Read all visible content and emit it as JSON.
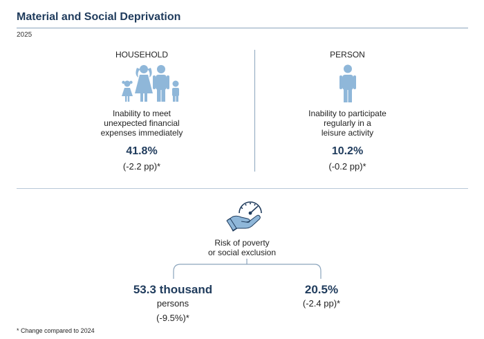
{
  "header": {
    "title": "Material and Social Deprivation",
    "year": "2025"
  },
  "household": {
    "heading": "HOUSEHOLD",
    "icon": "family-icon",
    "description_lines": [
      "Inability to meet",
      "unexpected financial",
      "expenses immediately"
    ],
    "value": "41.8%",
    "change": "(-2.2 pp)*"
  },
  "person": {
    "heading": "PERSON",
    "icon": "person-icon",
    "description_lines": [
      "Inability to participate",
      "regularly in a",
      "leisure activity"
    ],
    "value": "10.2%",
    "change": "(-0.2 pp)*"
  },
  "risk": {
    "icon": "hand-speedometer-icon",
    "label_lines": [
      "Risk of poverty",
      "or social exclusion"
    ],
    "count_value": "53.3 thousand",
    "count_unit": "persons",
    "count_change": "(-9.5%)*",
    "rate_value": "20.5%",
    "rate_change": "(-2.4 pp)*"
  },
  "footnote": "* Change compared to 2024",
  "colors": {
    "icon_blue": "#8fb7d9",
    "title_navy": "#1f3b5c",
    "divider": "#8aa4bc"
  }
}
